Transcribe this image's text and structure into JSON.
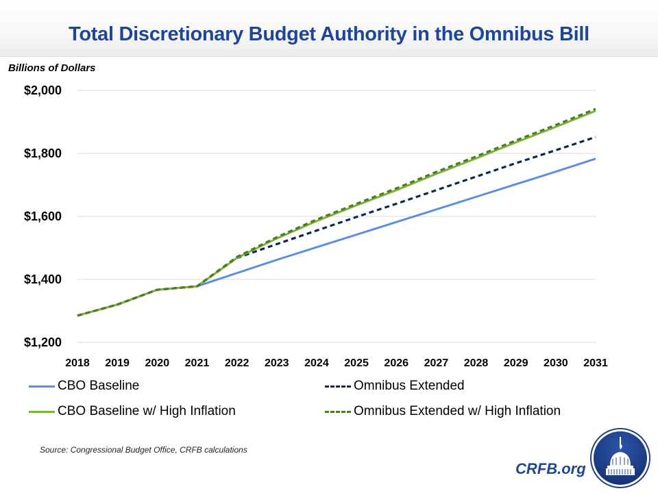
{
  "header": {
    "title": "Total Discretionary Budget Authority in the Omnibus Bill",
    "unit_label": "Billions of Dollars"
  },
  "colors": {
    "title": "#1f4596",
    "cbo_baseline": "#5b8ee0",
    "omnibus_extended": "#0f2756",
    "cbo_high_inflation": "#7db23a",
    "omnibus_high_inflation": "#4e7a23",
    "gridline": "#d9d9d9"
  },
  "chart_data": {
    "type": "line",
    "title": "Total Discretionary Budget Authority in the Omnibus Bill",
    "xlabel": "",
    "ylabel": "Billions of Dollars",
    "x": [
      "2018",
      "2019",
      "2020",
      "2021",
      "2022",
      "2023",
      "2024",
      "2025",
      "2026",
      "2027",
      "2028",
      "2029",
      "2030",
      "2031"
    ],
    "ylim": [
      1200,
      2000
    ],
    "yticks": [
      1200,
      1400,
      1600,
      1800,
      2000
    ],
    "ytick_labels": [
      "$1,200",
      "$1,400",
      "$1,600",
      "$1,800",
      "$2,000"
    ],
    "grid": true,
    "legend_position": "bottom",
    "series": [
      {
        "name": "CBO Baseline",
        "style": "solid",
        "color_key": "cbo_baseline",
        "values": [
          1285,
          1320,
          1367,
          1378,
          1420,
          1462,
          1502,
          1542,
          1582,
          1622,
          1662,
          1702,
          1742,
          1783
        ]
      },
      {
        "name": "Omnibus Extended",
        "style": "dashed",
        "color_key": "omnibus_extended",
        "values": [
          1285,
          1320,
          1367,
          1378,
          1468,
          1512,
          1555,
          1598,
          1640,
          1683,
          1726,
          1769,
          1810,
          1852
        ]
      },
      {
        "name": "CBO Baseline w/ High Inflation",
        "style": "solid",
        "color_key": "cbo_high_inflation",
        "values": [
          1285,
          1320,
          1367,
          1378,
          1468,
          1530,
          1585,
          1635,
          1683,
          1735,
          1784,
          1835,
          1884,
          1935
        ]
      },
      {
        "name": "Omnibus Extended w/ High Inflation",
        "style": "dashed",
        "color_key": "omnibus_high_inflation",
        "values": [
          1285,
          1320,
          1367,
          1378,
          1471,
          1534,
          1590,
          1640,
          1689,
          1741,
          1790,
          1841,
          1890,
          1941
        ]
      }
    ]
  },
  "legend": {
    "items": [
      {
        "label": "CBO Baseline"
      },
      {
        "label": "Omnibus Extended"
      },
      {
        "label": "CBO Baseline w/ High Inflation"
      },
      {
        "label": "Omnibus Extended w/ High Inflation"
      }
    ]
  },
  "footer": {
    "source": "Source: Congressional Budget Office, CRFB calculations",
    "brand": "CRFB.org"
  }
}
